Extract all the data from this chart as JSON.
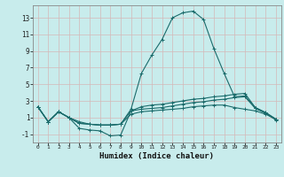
{
  "title": "",
  "xlabel": "Humidex (Indice chaleur)",
  "bg_color": "#c8ecec",
  "grid_color": "#b0d8d8",
  "line_color": "#1a6b6b",
  "xlim": [
    -0.5,
    23.5
  ],
  "ylim": [
    -2.0,
    14.5
  ],
  "xticks": [
    0,
    1,
    2,
    3,
    4,
    5,
    6,
    7,
    8,
    9,
    10,
    11,
    12,
    13,
    14,
    15,
    16,
    17,
    18,
    19,
    20,
    21,
    22,
    23
  ],
  "yticks": [
    -1,
    1,
    3,
    5,
    7,
    9,
    11,
    13
  ],
  "series": [
    {
      "x": [
        0,
        1,
        2,
        3,
        4,
        5,
        6,
        7,
        8,
        9,
        10,
        11,
        12,
        13,
        14,
        15,
        16,
        17,
        18,
        19,
        20,
        21,
        22,
        23
      ],
      "y": [
        2.3,
        0.5,
        1.7,
        1.0,
        -0.3,
        -0.5,
        -0.6,
        -1.2,
        -1.1,
        1.8,
        2.0,
        2.1,
        2.2,
        2.4,
        2.6,
        2.8,
        2.9,
        3.1,
        3.2,
        3.4,
        3.5,
        2.1,
        1.5,
        0.7
      ]
    },
    {
      "x": [
        0,
        1,
        2,
        3,
        4,
        5,
        6,
        7,
        8,
        9,
        10,
        11,
        12,
        13,
        14,
        15,
        16,
        17,
        18,
        19,
        20,
        21,
        22,
        23
      ],
      "y": [
        2.3,
        0.5,
        1.7,
        1.0,
        0.5,
        0.2,
        0.1,
        0.1,
        0.2,
        2.0,
        6.3,
        8.5,
        10.4,
        13.0,
        13.6,
        13.8,
        12.8,
        9.3,
        6.3,
        3.5,
        3.6,
        2.2,
        1.6,
        0.8
      ]
    },
    {
      "x": [
        0,
        1,
        2,
        3,
        4,
        5,
        6,
        7,
        8,
        9,
        10,
        11,
        12,
        13,
        14,
        15,
        16,
        17,
        18,
        19,
        20,
        21,
        22,
        23
      ],
      "y": [
        2.3,
        0.5,
        1.7,
        1.0,
        0.3,
        0.2,
        0.1,
        0.1,
        0.2,
        1.8,
        2.3,
        2.5,
        2.6,
        2.8,
        3.0,
        3.2,
        3.3,
        3.5,
        3.6,
        3.8,
        3.9,
        2.2,
        1.6,
        0.8
      ]
    },
    {
      "x": [
        0,
        1,
        2,
        3,
        4,
        5,
        6,
        7,
        8,
        9,
        10,
        11,
        12,
        13,
        14,
        15,
        16,
        17,
        18,
        19,
        20,
        21,
        22,
        23
      ],
      "y": [
        2.3,
        0.5,
        1.7,
        1.0,
        0.3,
        0.2,
        0.1,
        0.1,
        0.2,
        1.4,
        1.7,
        1.8,
        1.9,
        2.0,
        2.1,
        2.3,
        2.4,
        2.5,
        2.5,
        2.2,
        2.0,
        1.8,
        1.4,
        0.8
      ]
    }
  ]
}
